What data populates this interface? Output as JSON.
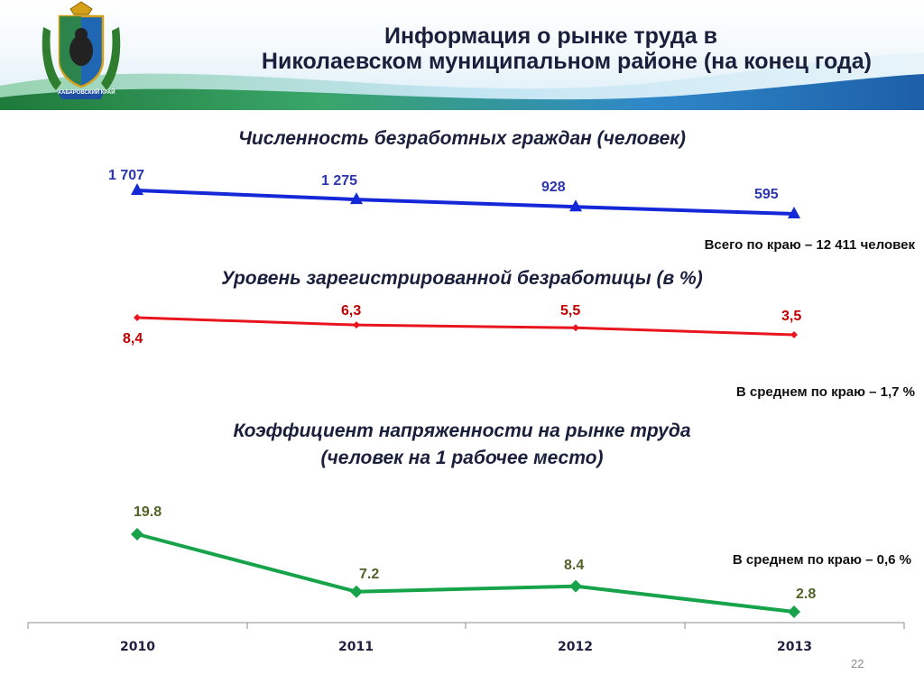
{
  "header": {
    "title_line1": "Информация о рынке труда в",
    "title_line2": "Николаевском муниципальном районе (на конец года)",
    "emblem_caption": "ХАБАРОВСКИЙ КРАЙ"
  },
  "colors": {
    "unemployed": "#1428d8",
    "rate": "#e8141e",
    "tension": "#16a34a"
  },
  "chart_data": [
    {
      "type": "line",
      "title": "Численность безработных граждан (человек)",
      "categories": [
        "2010",
        "2011",
        "2012",
        "2013"
      ],
      "values": [
        1707,
        1275,
        928,
        595
      ],
      "value_labels": [
        "1 707",
        "1 275",
        "928",
        "595"
      ],
      "marker": "triangle",
      "note": "Всего по краю – 12 411 человек"
    },
    {
      "type": "line",
      "title": "Уровень зарегистрированной безработицы (в %)",
      "categories": [
        "2010",
        "2011",
        "2012",
        "2013"
      ],
      "values": [
        8.4,
        6.3,
        5.5,
        3.5
      ],
      "value_labels": [
        "8,4",
        "6,3",
        "5,5",
        "3,5"
      ],
      "marker": "diamond",
      "note": "В среднем по краю – 1,7 %"
    },
    {
      "type": "line",
      "title_line1": "Коэффициент напряженности на рынке труда",
      "title_line2": "(человек на 1 рабочее место)",
      "categories": [
        "2010",
        "2011",
        "2012",
        "2013"
      ],
      "values": [
        19.8,
        7.2,
        8.4,
        2.8
      ],
      "value_labels": [
        "19.8",
        "7.2",
        "8.4",
        "2.8"
      ],
      "marker": "diamond",
      "note": "В среднем по краю – 0,6 %"
    }
  ],
  "page_number": "22"
}
